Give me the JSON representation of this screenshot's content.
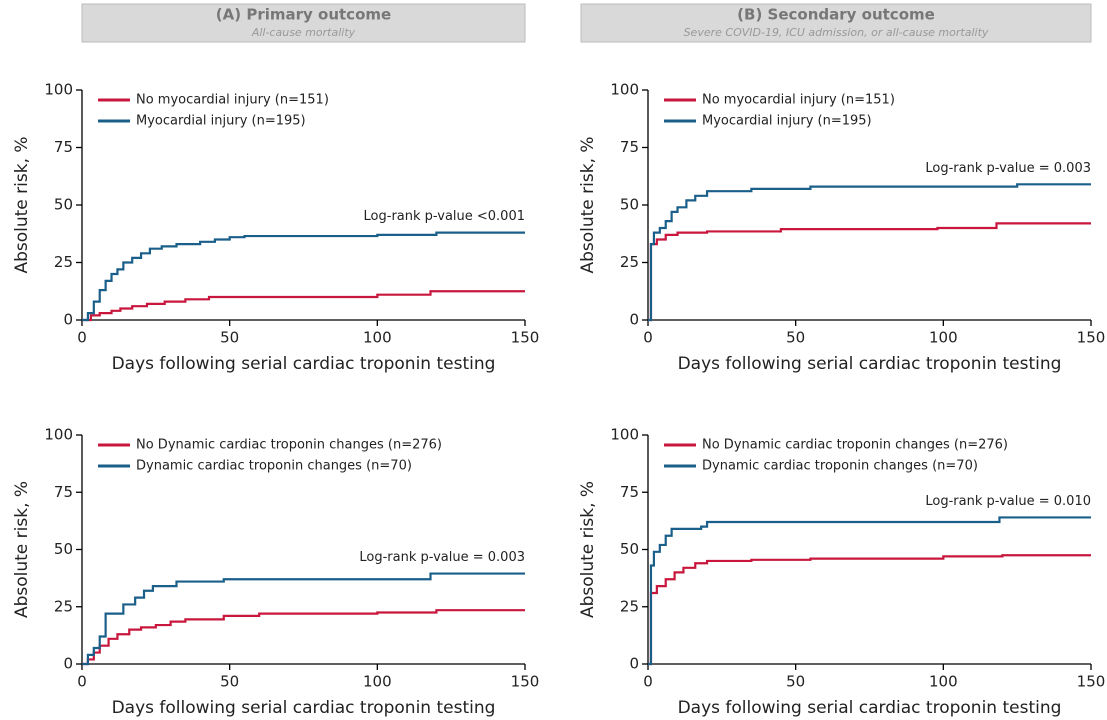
{
  "chart_data": [
    {
      "type": "line",
      "step": true,
      "title": "(A) Primary outcome",
      "subtitle": "All-cause mortality",
      "xlabel": "Days following serial cardiac troponin testing",
      "ylabel": "Absolute risk, %",
      "xlim": [
        0,
        150
      ],
      "ylim": [
        0,
        100
      ],
      "xticks": [
        0,
        50,
        100,
        150
      ],
      "yticks": [
        0,
        25,
        50,
        75,
        100
      ],
      "legend": "upper left",
      "annotation": "Log-rank p-value <0.001",
      "series": [
        {
          "name": "No myocardial injury (n=151)",
          "color": "#c8163c",
          "x": [
            0,
            3,
            6,
            10,
            13,
            17,
            22,
            28,
            35,
            43,
            100,
            118,
            150
          ],
          "values": [
            0,
            2,
            3,
            4,
            5,
            6,
            7,
            8,
            9,
            10,
            11,
            12.5,
            12.5
          ]
        },
        {
          "name": "Myocardial injury (n=195)",
          "color": "#1a5f8a",
          "x": [
            0,
            2,
            4,
            6,
            8,
            10,
            12,
            14,
            17,
            20,
            23,
            27,
            32,
            40,
            45,
            50,
            55,
            100,
            120,
            150
          ],
          "values": [
            0,
            3,
            8,
            13,
            17,
            20,
            22,
            25,
            27,
            29,
            31,
            32,
            33,
            34,
            35,
            36,
            36.5,
            37,
            38,
            38
          ]
        }
      ]
    },
    {
      "type": "line",
      "step": true,
      "title": "(B) Secondary outcome",
      "subtitle": "Severe COVID-19, ICU admission, or all-cause mortality",
      "xlabel": "Days following serial cardiac troponin testing",
      "ylabel": "Absolute risk, %",
      "xlim": [
        0,
        150
      ],
      "ylim": [
        0,
        100
      ],
      "xticks": [
        0,
        50,
        100,
        150
      ],
      "yticks": [
        0,
        25,
        50,
        75,
        100
      ],
      "legend": "upper left",
      "annotation": "Log-rank p-value = 0.003",
      "series": [
        {
          "name": "No myocardial injury (n=151)",
          "color": "#c8163c",
          "x": [
            0,
            1,
            3,
            6,
            10,
            20,
            45,
            98,
            118,
            150
          ],
          "values": [
            0,
            33,
            35,
            37,
            38,
            38.5,
            39.5,
            40,
            42,
            42
          ]
        },
        {
          "name": "Myocardial injury (n=195)",
          "color": "#1a5f8a",
          "x": [
            0,
            1,
            2,
            4,
            6,
            8,
            10,
            13,
            16,
            20,
            35,
            55,
            100,
            125,
            150
          ],
          "values": [
            0,
            33,
            38,
            40,
            43,
            47,
            49,
            52,
            54,
            56,
            57,
            58,
            58,
            59,
            59
          ]
        }
      ]
    },
    {
      "type": "line",
      "step": true,
      "xlabel": "Days following serial cardiac troponin testing",
      "ylabel": "Absolute risk, %",
      "xlim": [
        0,
        150
      ],
      "ylim": [
        0,
        100
      ],
      "xticks": [
        0,
        50,
        100,
        150
      ],
      "yticks": [
        0,
        25,
        50,
        75,
        100
      ],
      "legend": "upper left",
      "annotation": "Log-rank p-value = 0.003",
      "series": [
        {
          "name": "No Dynamic cardiac troponin changes (n=276)",
          "color": "#c8163c",
          "x": [
            0,
            2,
            4,
            6,
            9,
            12,
            16,
            20,
            25,
            30,
            35,
            48,
            60,
            100,
            120,
            150
          ],
          "values": [
            0,
            2,
            5,
            8,
            11,
            13,
            15,
            16,
            17,
            18.5,
            19.5,
            21,
            22,
            22.5,
            23.5,
            23.5
          ]
        },
        {
          "name": "Dynamic cardiac troponin changes (n=70)",
          "color": "#1a5f8a",
          "x": [
            0,
            2,
            4,
            6,
            8,
            14,
            18,
            21,
            24,
            32,
            48,
            118,
            150
          ],
          "values": [
            0,
            4,
            7,
            12,
            22,
            26,
            29,
            32,
            34,
            36,
            37,
            39.5,
            39.5
          ]
        }
      ]
    },
    {
      "type": "line",
      "step": true,
      "xlabel": "Days following serial cardiac troponin testing",
      "ylabel": "Absolute risk, %",
      "xlim": [
        0,
        150
      ],
      "ylim": [
        0,
        100
      ],
      "xticks": [
        0,
        50,
        100,
        150
      ],
      "yticks": [
        0,
        25,
        50,
        75,
        100
      ],
      "legend": "upper left",
      "annotation": "Log-rank p-value = 0.010",
      "series": [
        {
          "name": "No Dynamic cardiac troponin changes (n=276)",
          "color": "#c8163c",
          "x": [
            0,
            1,
            3,
            6,
            9,
            12,
            16,
            20,
            35,
            55,
            100,
            120,
            150
          ],
          "values": [
            0,
            31,
            34,
            37,
            40,
            42,
            44,
            45,
            45.5,
            46,
            47,
            47.5,
            47.5
          ]
        },
        {
          "name": "Dynamic cardiac troponin changes (n=70)",
          "color": "#1a5f8a",
          "x": [
            0,
            1,
            2,
            4,
            6,
            8,
            18,
            20,
            118,
            119,
            150
          ],
          "values": [
            0,
            43,
            49,
            52,
            56,
            59,
            60,
            62,
            62,
            64,
            64
          ]
        }
      ]
    }
  ]
}
